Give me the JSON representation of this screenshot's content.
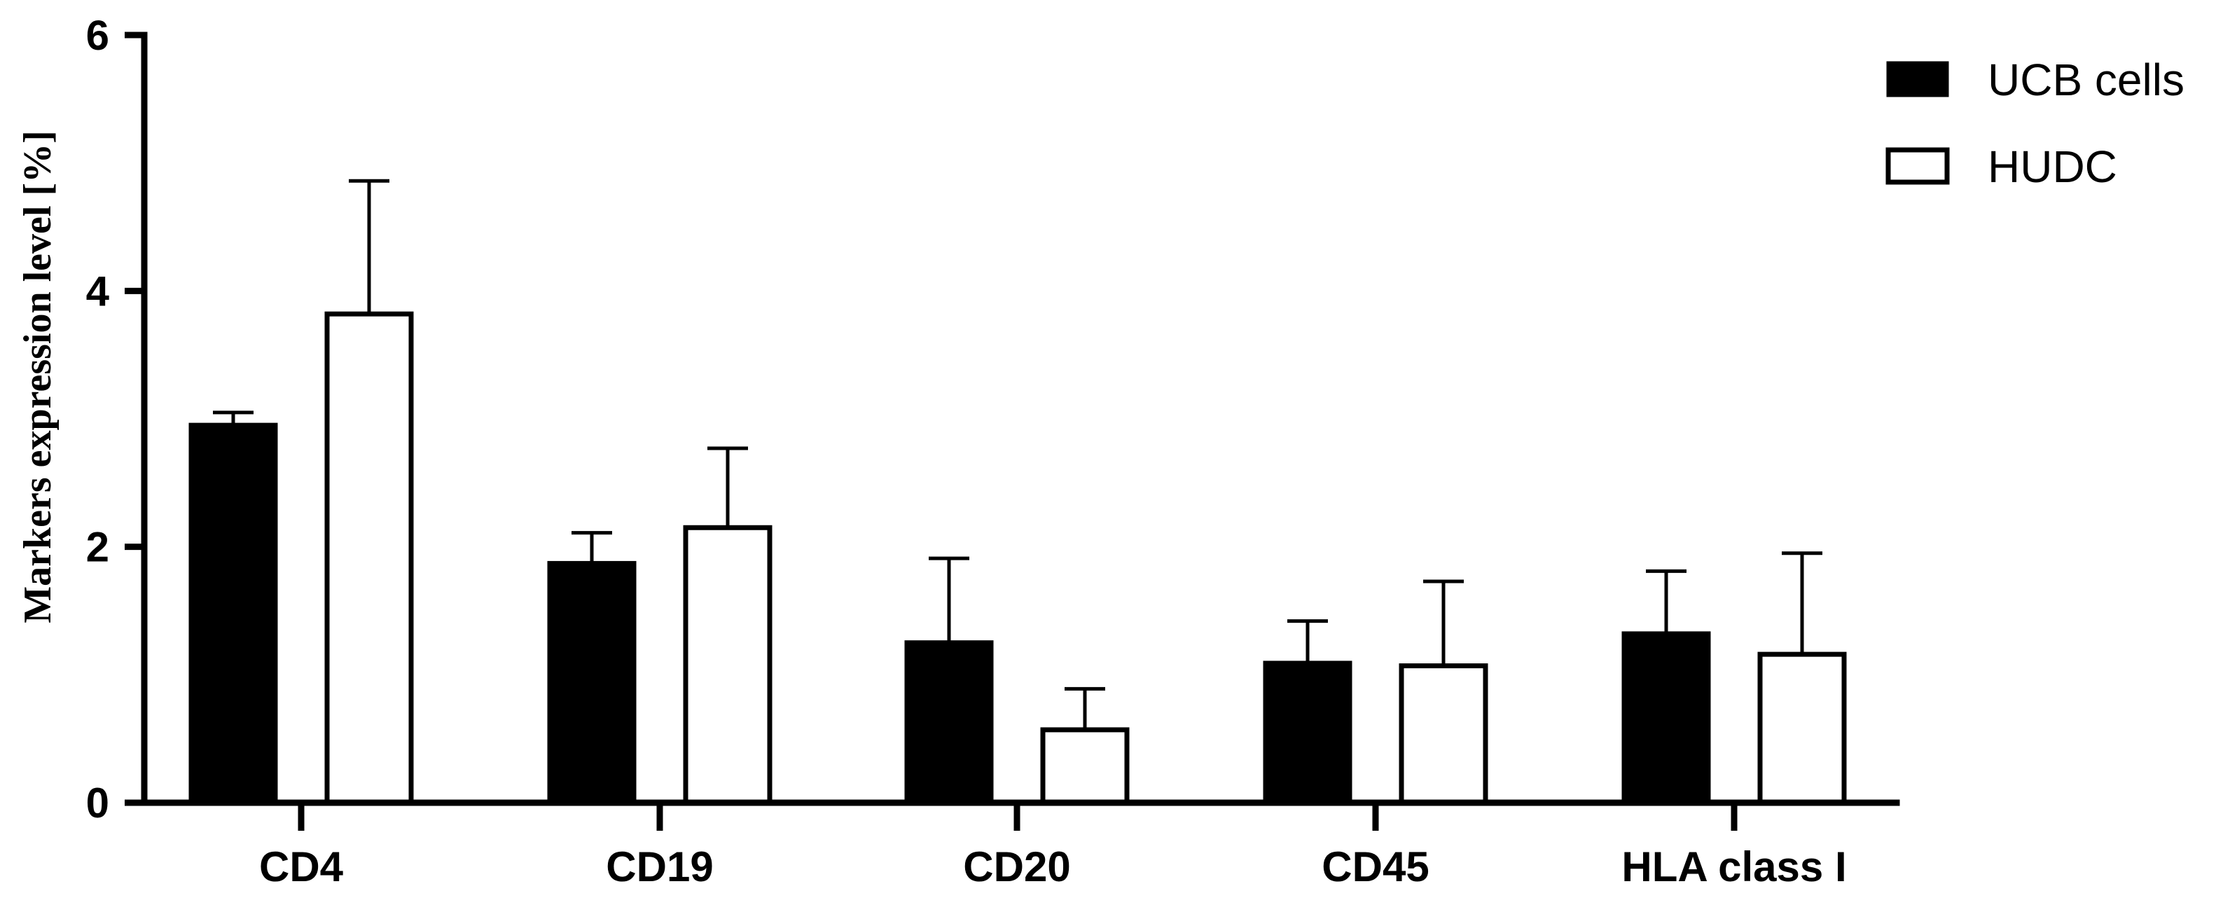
{
  "chart_data": {
    "type": "bar",
    "title": "",
    "xlabel": "",
    "ylabel": "Markers expression level [%]",
    "ylim": [
      0,
      6
    ],
    "yticks": [
      "0",
      "2",
      "4",
      "6"
    ],
    "grid": false,
    "legend_position": "top-right",
    "categories": [
      "CD4",
      "CD19",
      "CD20",
      "CD45",
      "HLA class I"
    ],
    "series": [
      {
        "name": "UCB cells",
        "fill": "#000000",
        "values": [
          2.95,
          1.87,
          1.25,
          1.09,
          1.32
        ],
        "errors": [
          0.1,
          0.24,
          0.66,
          0.33,
          0.49
        ]
      },
      {
        "name": "HUDC",
        "fill": "#ffffff",
        "values": [
          3.82,
          2.15,
          0.57,
          1.07,
          1.16
        ],
        "errors": [
          1.04,
          0.62,
          0.32,
          0.66,
          0.79
        ]
      }
    ]
  }
}
